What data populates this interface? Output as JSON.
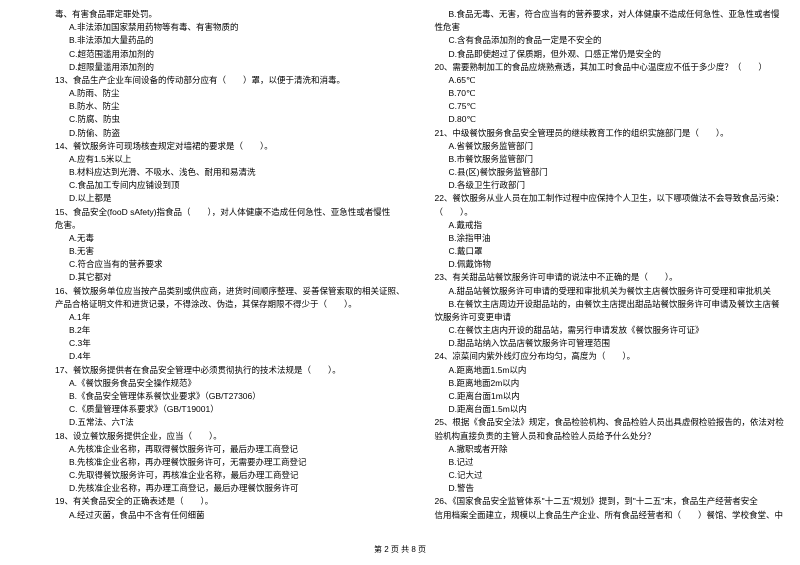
{
  "footer": "第 2 页 共 8 页",
  "left": [
    {
      "t": "毒、有害食品罪定罪处罚。",
      "c": ""
    },
    {
      "t": "A.非法添加国家禁用药物等有毒、有害物质的",
      "c": "indent1"
    },
    {
      "t": "B.非法添加大量药品的",
      "c": "indent1"
    },
    {
      "t": "C.超范围滥用添加剂的",
      "c": "indent1"
    },
    {
      "t": "D.超限量滥用添加剂的",
      "c": "indent1"
    },
    {
      "t": "13、食品生产企业车间设备的传动部分应有（　　）罩，以便于清洗和消毒。",
      "c": ""
    },
    {
      "t": "A.防雨、防尘",
      "c": "indent1"
    },
    {
      "t": "B.防水、防尘",
      "c": "indent1"
    },
    {
      "t": "C.防腐、防虫",
      "c": "indent1"
    },
    {
      "t": "D.防偷、防盗",
      "c": "indent1"
    },
    {
      "t": "14、餐饮服务许可现场核查规定对墙裙的要求是（　　）。",
      "c": ""
    },
    {
      "t": "A.应有1.5米以上",
      "c": "indent1"
    },
    {
      "t": "B.材料应达到光滑、不吸水、浅色、耐用和易清洗",
      "c": "indent1"
    },
    {
      "t": "C.食品加工专间内应铺设到顶",
      "c": "indent1"
    },
    {
      "t": "D.以上都是",
      "c": "indent1"
    },
    {
      "t": "15、食品安全(fooD sAfety)指食品（　　），对人体健康不造成任何急性、亚急性或者慢性",
      "c": ""
    },
    {
      "t": "危害。",
      "c": ""
    },
    {
      "t": "A.无毒",
      "c": "indent1"
    },
    {
      "t": "B.无害",
      "c": "indent1"
    },
    {
      "t": "C.符合应当有的营养要求",
      "c": "indent1"
    },
    {
      "t": "D.其它都对",
      "c": "indent1"
    },
    {
      "t": "16、餐饮服务单位应当按产品类别或供应商，进货时间顺序整理、妥善保管索取的相关证照、",
      "c": ""
    },
    {
      "t": "产品合格证明文件和进货记录，不得涂改、伪造，其保存期限不得少于（　　）。",
      "c": ""
    },
    {
      "t": "A.1年",
      "c": "indent1"
    },
    {
      "t": "B.2年",
      "c": "indent1"
    },
    {
      "t": "C.3年",
      "c": "indent1"
    },
    {
      "t": "D.4年",
      "c": "indent1"
    },
    {
      "t": "17、餐饮服务提供者在食品安全管理中必须贯彻执行的技术法规是（　　）。",
      "c": ""
    },
    {
      "t": "A.《餐饮服务食品安全操作规范》",
      "c": "indent1"
    },
    {
      "t": "B.《食品安全管理体系餐饮业要求》（GB/T27306）",
      "c": "indent1"
    },
    {
      "t": "C.《质量管理体系要求》（GB/T19001）",
      "c": "indent1"
    },
    {
      "t": "D.五常法、六T法",
      "c": "indent1"
    },
    {
      "t": "18、设立餐饮服务提供企业，应当（　　）。",
      "c": ""
    },
    {
      "t": "A.先核准企业名称，再取得餐饮服务许可，最后办理工商登记",
      "c": "indent1"
    },
    {
      "t": "B.先核准企业名称，再办理餐饮服务许可，无需要办理工商登记",
      "c": "indent1"
    },
    {
      "t": "C.先取得餐饮服务许可，再核准企业名称，最后办理工商登记",
      "c": "indent1"
    },
    {
      "t": "D.先核准企业名称，再办理工商登记，最后办理餐饮服务许可",
      "c": "indent1"
    },
    {
      "t": "19、有关食品安全的正确表述是（　　）。",
      "c": ""
    },
    {
      "t": "A.经过灭菌，食品中不含有任何细菌",
      "c": "indent1"
    }
  ],
  "right": [
    {
      "t": "B.食品无毒、无害，符合应当有的营养要求，对人体健康不造成任何急性、亚急性或者慢",
      "c": "indent1"
    },
    {
      "t": "性危害",
      "c": ""
    },
    {
      "t": "C.含有食品添加剂的食品一定是不安全的",
      "c": "indent1"
    },
    {
      "t": "D.食品即使超过了保质期，但外观、口感正常仍是安全的",
      "c": "indent1"
    },
    {
      "t": "20、需要熟制加工的食品应烧熟煮透，其加工时食品中心温度应不低于多少度？（　　）",
      "c": ""
    },
    {
      "t": "A.65℃",
      "c": "indent1"
    },
    {
      "t": "B.70℃",
      "c": "indent1"
    },
    {
      "t": "C.75℃",
      "c": "indent1"
    },
    {
      "t": "D.80℃",
      "c": "indent1"
    },
    {
      "t": "21、中级餐饮服务食品安全管理员的继续教育工作的组织实施部门是（　　）。",
      "c": ""
    },
    {
      "t": "A.省餐饮服务监管部门",
      "c": "indent1"
    },
    {
      "t": "B.市餐饮服务监管部门",
      "c": "indent1"
    },
    {
      "t": "C.县(区)餐饮服务监管部门",
      "c": "indent1"
    },
    {
      "t": "D.各级卫生行政部门",
      "c": "indent1"
    },
    {
      "t": "22、餐饮服务从业人员在加工制作过程中应保持个人卫生，以下哪项做法不会导致食品污染：",
      "c": ""
    },
    {
      "t": "（　　）。",
      "c": ""
    },
    {
      "t": "A.戴戒指",
      "c": "indent1"
    },
    {
      "t": "B.涂指甲油",
      "c": "indent1"
    },
    {
      "t": "C.戴口罩",
      "c": "indent1"
    },
    {
      "t": "D.佩戴饰物",
      "c": "indent1"
    },
    {
      "t": "23、有关甜品站餐饮服务许可申请的说法中不正确的是（　　）。",
      "c": ""
    },
    {
      "t": "A.甜品站餐饮服务许可申请的受理和审批机关为餐饮主店餐饮服务许可受理和审批机关",
      "c": "indent1"
    },
    {
      "t": "B.在餐饮主店周边开设甜品站的，由餐饮主店提出甜品站餐饮服务许可申请及餐饮主店餐",
      "c": "indent1"
    },
    {
      "t": "饮服务许可变更申请",
      "c": ""
    },
    {
      "t": "C.在餐饮主店内开设的甜品站，需另行申请发放《餐饮服务许可证》",
      "c": "indent1"
    },
    {
      "t": "D.甜品站纳入饮品店餐饮服务许可管理范围",
      "c": "indent1"
    },
    {
      "t": "24、凉菜间内紫外线灯应分布均匀，高度为（　　）。",
      "c": ""
    },
    {
      "t": "A.距离地面1.5m以内",
      "c": "indent1"
    },
    {
      "t": "B.距离地面2m以内",
      "c": "indent1"
    },
    {
      "t": "C.距离台面1m以内",
      "c": "indent1"
    },
    {
      "t": "D.距离台面1.5m以内",
      "c": "indent1"
    },
    {
      "t": "25、根据《食品安全法》规定，食品检验机构、食品检验人员出具虚假检验报告的，依法对检",
      "c": ""
    },
    {
      "t": "验机构直接负责的主管人员和食品检验人员给予什么处分？",
      "c": ""
    },
    {
      "t": "A.撤职或者开除",
      "c": "indent1"
    },
    {
      "t": "B.记过",
      "c": "indent1"
    },
    {
      "t": "C.记大过",
      "c": "indent1"
    },
    {
      "t": "D.警告",
      "c": "indent1"
    },
    {
      "t": "26、《国家食品安全监管体系\"十二五\"规划》提到，到\"十二五\"末，食品生产经营者安全",
      "c": ""
    },
    {
      "t": "信用档案全面建立，规模以上食品生产企业、所有食品经营者和（　　）餐馆、学校食堂、中",
      "c": ""
    }
  ]
}
